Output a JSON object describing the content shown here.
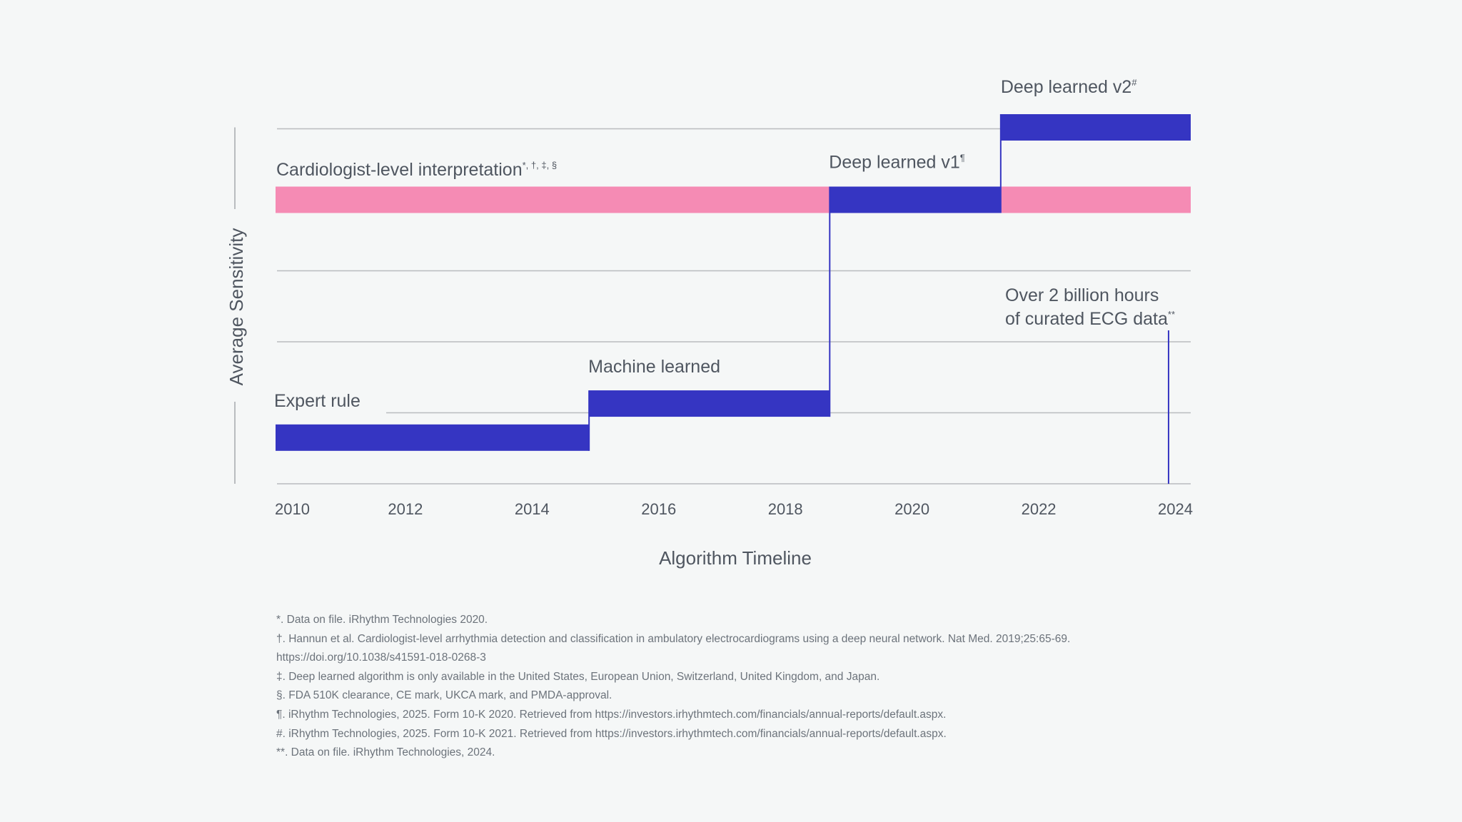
{
  "chart_data": {
    "type": "step-timeline",
    "xlabel": "Algorithm Timeline",
    "ylabel": "Average Sensitivity",
    "x_ticks": [
      "2010",
      "2012",
      "2014",
      "2016",
      "2018",
      "2020",
      "2022",
      "2024"
    ],
    "xlim": [
      2009.95,
      2024.4
    ],
    "grid": true,
    "colors": {
      "accent": "#3535c2",
      "reference": "#f58bb4",
      "grid": "#b9bcbf",
      "text": "#4f5660"
    },
    "reference_band": {
      "label": "Cardiologist-level interpretation",
      "label_sup": "*, †, ‡, §",
      "start": 2009.95,
      "end": 2024.4,
      "level": 4
    },
    "steps": [
      {
        "label": "Expert rule",
        "sup": "",
        "start": 2009.95,
        "end": 2014.9,
        "level": 0.65
      },
      {
        "label": "Machine learned",
        "sup": "",
        "start": 2014.9,
        "end": 2018.7,
        "level": 1.13
      },
      {
        "label": "Deep learned v1",
        "sup": "¶",
        "start": 2018.7,
        "end": 2021.4,
        "level": 4
      },
      {
        "label": "Deep learned v2",
        "sup": "#",
        "start": 2021.4,
        "end": 2024.4,
        "level": 5.02
      }
    ],
    "marker": {
      "x": 2024.05,
      "line1": "Over 2 billion hours",
      "line2": "of curated ECG data",
      "sup": "**"
    }
  },
  "footnotes": [
    "*. Data on file. iRhythm Technologies 2020.",
    "†. Hannun et al. Cardiologist-level arrhythmia detection and classification in ambulatory electrocardiograms using a deep neural network. Nat Med. 2019;25:65-69. https://doi.org/10.1038/s41591-018-0268-3",
    "‡. Deep learned algorithm is only available in the United States, European Union, Switzerland, United Kingdom, and Japan.",
    "§. FDA 510K clearance, CE mark, UKCA mark, and PMDA-approval.",
    "¶. iRhythm Technologies, 2025. Form 10-K 2020. Retrieved from https://investors.irhythmtech.com/financials/annual-reports/default.aspx.",
    "#. iRhythm Technologies, 2025. Form 10-K 2021. Retrieved from https://investors.irhythmtech.com/financials/annual-reports/default.aspx.",
    "**. Data on file. iRhythm Technologies, 2024."
  ]
}
